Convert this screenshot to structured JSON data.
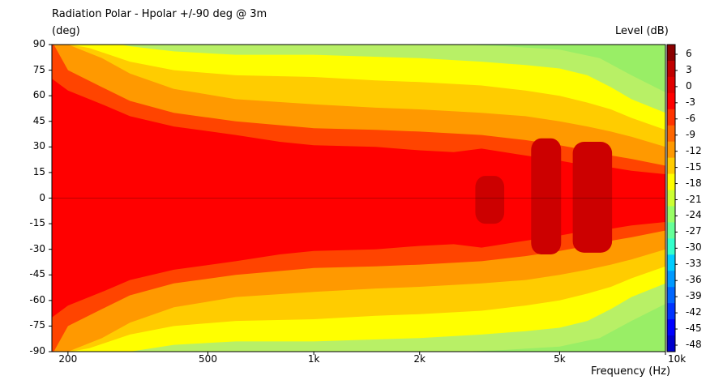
{
  "chart_data": {
    "type": "heatmap",
    "title": "Radiation Polar - Hpolar +/-90 deg @ 3m",
    "ylabel": "(deg)",
    "xlabel": "Frequency  (Hz)",
    "colorbar_label": "Level  (dB)",
    "x_scale": "log",
    "xlim": [
      180,
      10000
    ],
    "ylim": [
      -90,
      90
    ],
    "x_ticks": [
      {
        "value": 200,
        "label": "200"
      },
      {
        "value": 500,
        "label": "500"
      },
      {
        "value": 1000,
        "label": "1k"
      },
      {
        "value": 2000,
        "label": "2k"
      },
      {
        "value": 5000,
        "label": "5k"
      },
      {
        "value": 10000,
        "label": "10k"
      }
    ],
    "y_ticks": [
      {
        "value": 90,
        "label": "90"
      },
      {
        "value": 75,
        "label": "75"
      },
      {
        "value": 60,
        "label": "60"
      },
      {
        "value": 45,
        "label": "45"
      },
      {
        "value": 30,
        "label": "30"
      },
      {
        "value": 15,
        "label": "15"
      },
      {
        "value": 0,
        "label": "0"
      },
      {
        "value": -15,
        "label": "-15"
      },
      {
        "value": -30,
        "label": "-30"
      },
      {
        "value": -45,
        "label": "-45"
      },
      {
        "value": -60,
        "label": "-60"
      },
      {
        "value": -75,
        "label": "-75"
      },
      {
        "value": -90,
        "label": "-90"
      }
    ],
    "level_ticks": [
      "6",
      "3",
      "0",
      "-3",
      "-6",
      "-9",
      "-12",
      "-15",
      "-18",
      "-21",
      "-24",
      "-27",
      "-30",
      "-33",
      "-36",
      "-39",
      "-42",
      "-45",
      "-48"
    ],
    "level_colors": [
      "#8b0000",
      "#c00000",
      "#e00000",
      "#ff0000",
      "#ff3300",
      "#ff6600",
      "#ff9900",
      "#ffcc00",
      "#ffff00",
      "#ccff33",
      "#99ff66",
      "#66ff99",
      "#33ffcc",
      "#00ccff",
      "#0099ff",
      "#0066ff",
      "#0033ff",
      "#0000ff",
      "#0000cc"
    ],
    "contours": [
      {
        "level": "-12",
        "color": "#b8f066",
        "upper": [
          [
            180,
            92
          ],
          [
            1000,
            92
          ],
          [
            2000,
            91
          ],
          [
            3500,
            89
          ],
          [
            5000,
            87
          ],
          [
            6500,
            82
          ],
          [
            8000,
            72
          ],
          [
            10000,
            62
          ]
        ],
        "lower": [
          [
            180,
            -92
          ],
          [
            1000,
            -92
          ],
          [
            2000,
            -91
          ],
          [
            3500,
            -89
          ],
          [
            5000,
            -87
          ],
          [
            6500,
            -82
          ],
          [
            8000,
            -72
          ],
          [
            10000,
            -62
          ]
        ]
      },
      {
        "level": "-9",
        "color": "#ffff00",
        "upper": [
          [
            180,
            92
          ],
          [
            250,
            92
          ],
          [
            300,
            89
          ],
          [
            400,
            86
          ],
          [
            600,
            84
          ],
          [
            1000,
            84
          ],
          [
            2000,
            82
          ],
          [
            3000,
            80
          ],
          [
            4000,
            78
          ],
          [
            5000,
            76
          ],
          [
            6000,
            72
          ],
          [
            7000,
            65
          ],
          [
            8000,
            58
          ],
          [
            10000,
            50
          ]
        ],
        "lower": [
          [
            180,
            -92
          ],
          [
            250,
            -92
          ],
          [
            300,
            -90
          ],
          [
            400,
            -86
          ],
          [
            600,
            -84
          ],
          [
            1000,
            -84
          ],
          [
            2000,
            -82
          ],
          [
            3000,
            -80
          ],
          [
            4000,
            -78
          ],
          [
            5000,
            -76
          ],
          [
            6000,
            -72
          ],
          [
            7000,
            -65
          ],
          [
            8000,
            -58
          ],
          [
            10000,
            -50
          ]
        ]
      },
      {
        "level": "-6",
        "color": "#ffcc00",
        "upper": [
          [
            180,
            92
          ],
          [
            230,
            88
          ],
          [
            300,
            80
          ],
          [
            400,
            75
          ],
          [
            600,
            72
          ],
          [
            1000,
            71
          ],
          [
            1500,
            69
          ],
          [
            2000,
            68
          ],
          [
            3000,
            66
          ],
          [
            4000,
            63
          ],
          [
            5000,
            60
          ],
          [
            6000,
            56
          ],
          [
            7000,
            52
          ],
          [
            8000,
            47
          ],
          [
            10000,
            40
          ]
        ],
        "lower": [
          [
            180,
            -92
          ],
          [
            230,
            -88
          ],
          [
            300,
            -80
          ],
          [
            400,
            -75
          ],
          [
            600,
            -72
          ],
          [
            1000,
            -71
          ],
          [
            1500,
            -69
          ],
          [
            2000,
            -68
          ],
          [
            3000,
            -66
          ],
          [
            4000,
            -63
          ],
          [
            5000,
            -60
          ],
          [
            6000,
            -56
          ],
          [
            7000,
            -52
          ],
          [
            8000,
            -47
          ],
          [
            10000,
            -40
          ]
        ]
      },
      {
        "level": "-3",
        "color": "#ff9900",
        "upper": [
          [
            180,
            92
          ],
          [
            200,
            90
          ],
          [
            250,
            82
          ],
          [
            300,
            73
          ],
          [
            400,
            64
          ],
          [
            600,
            58
          ],
          [
            1000,
            55
          ],
          [
            1500,
            53
          ],
          [
            2000,
            52
          ],
          [
            3000,
            50
          ],
          [
            4000,
            48
          ],
          [
            5000,
            45
          ],
          [
            6000,
            42
          ],
          [
            7000,
            39
          ],
          [
            8000,
            36
          ],
          [
            10000,
            30
          ]
        ],
        "lower": [
          [
            180,
            -92
          ],
          [
            200,
            -90
          ],
          [
            250,
            -82
          ],
          [
            300,
            -73
          ],
          [
            400,
            -64
          ],
          [
            600,
            -58
          ],
          [
            1000,
            -55
          ],
          [
            1500,
            -53
          ],
          [
            2000,
            -52
          ],
          [
            3000,
            -50
          ],
          [
            4000,
            -48
          ],
          [
            5000,
            -45
          ],
          [
            6000,
            -42
          ],
          [
            7000,
            -39
          ],
          [
            8000,
            -36
          ],
          [
            10000,
            -30
          ]
        ]
      },
      {
        "level": "0",
        "color": "#ff4400",
        "upper": [
          [
            180,
            92
          ],
          [
            200,
            75
          ],
          [
            250,
            65
          ],
          [
            300,
            57
          ],
          [
            400,
            50
          ],
          [
            600,
            45
          ],
          [
            1000,
            41
          ],
          [
            1500,
            40
          ],
          [
            2000,
            39
          ],
          [
            3000,
            37
          ],
          [
            4000,
            34
          ],
          [
            5000,
            31
          ],
          [
            6000,
            28
          ],
          [
            7000,
            25
          ],
          [
            8000,
            23
          ],
          [
            10000,
            19
          ]
        ],
        "lower": [
          [
            180,
            -92
          ],
          [
            200,
            -75
          ],
          [
            250,
            -65
          ],
          [
            300,
            -57
          ],
          [
            400,
            -50
          ],
          [
            600,
            -45
          ],
          [
            1000,
            -41
          ],
          [
            1500,
            -40
          ],
          [
            2000,
            -39
          ],
          [
            3000,
            -37
          ],
          [
            4000,
            -34
          ],
          [
            5000,
            -31
          ],
          [
            6000,
            -28
          ],
          [
            7000,
            -25
          ],
          [
            8000,
            -23
          ],
          [
            10000,
            -19
          ]
        ]
      },
      {
        "level": "3",
        "color": "#ff0000",
        "upper": [
          [
            180,
            70
          ],
          [
            200,
            63
          ],
          [
            250,
            55
          ],
          [
            300,
            48
          ],
          [
            400,
            42
          ],
          [
            600,
            37
          ],
          [
            800,
            33
          ],
          [
            1000,
            31
          ],
          [
            1500,
            30
          ],
          [
            2000,
            28
          ],
          [
            2500,
            27
          ],
          [
            3000,
            29
          ],
          [
            4000,
            25
          ],
          [
            5000,
            22
          ],
          [
            6000,
            19
          ],
          [
            7000,
            18
          ],
          [
            8000,
            16
          ],
          [
            10000,
            14
          ]
        ],
        "lower": [
          [
            180,
            -70
          ],
          [
            200,
            -63
          ],
          [
            250,
            -55
          ],
          [
            300,
            -48
          ],
          [
            400,
            -42
          ],
          [
            600,
            -37
          ],
          [
            800,
            -33
          ],
          [
            1000,
            -31
          ],
          [
            1500,
            -30
          ],
          [
            2000,
            -28
          ],
          [
            2500,
            -27
          ],
          [
            3000,
            -29
          ],
          [
            4000,
            -25
          ],
          [
            5000,
            -22
          ],
          [
            6000,
            -19
          ],
          [
            7000,
            -18
          ],
          [
            8000,
            -16
          ],
          [
            10000,
            -14
          ]
        ]
      }
    ],
    "peaks": [
      {
        "level": "6",
        "color": "#cc0000",
        "x": [
          2880,
          3480
        ],
        "y": [
          -15,
          13
        ]
      },
      {
        "level": "6",
        "color": "#cc0000",
        "x": [
          4150,
          5050
        ],
        "y": [
          -33,
          35
        ]
      },
      {
        "level": "6",
        "color": "#cc0000",
        "x": [
          5450,
          7050
        ],
        "y": [
          -32,
          33
        ]
      }
    ]
  }
}
